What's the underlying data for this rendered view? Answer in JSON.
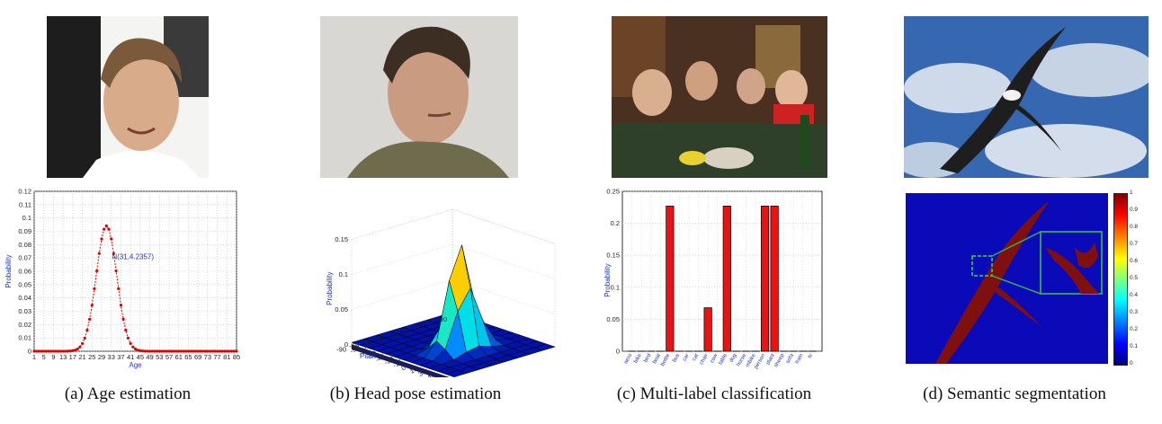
{
  "captions": {
    "a": "(a) Age estimation",
    "b": "(b) Head pose estimation",
    "c": "(c) Multi-label classification",
    "d": "(d) Semantic segmentation"
  },
  "age_annotation": "N(31,4.2357)",
  "segmentation_colorbar_ticks": [
    "1",
    "0.9",
    "0.8",
    "0.7",
    "0.6",
    "0.5",
    "0.4",
    "0.3",
    "0.2",
    "0.1",
    "0"
  ],
  "chart_data": [
    {
      "type": "line",
      "xlabel": "Age",
      "ylabel": "Probability",
      "ylim": [
        0,
        0.12
      ],
      "xlim": [
        1,
        85
      ],
      "xticks": [
        "1",
        "5",
        "9",
        "13",
        "17",
        "21",
        "25",
        "29",
        "33",
        "37",
        "41",
        "45",
        "49",
        "53",
        "57",
        "61",
        "65",
        "69",
        "73",
        "77",
        "81",
        "85"
      ],
      "yticks": [
        "0",
        "0.01",
        "0.02",
        "0.03",
        "0.04",
        "0.05",
        "0.06",
        "0.07",
        "0.08",
        "0.09",
        "0.1",
        "0.11",
        "0.12"
      ],
      "grid": true,
      "series": [
        {
          "mean": 31,
          "std": 4.2357
        }
      ]
    },
    {
      "type": "bar",
      "subtype": "3d-surface",
      "xlabel": "Yaw",
      "ylabel": "Pitch",
      "zlabel": "Probability",
      "zlim": [
        0,
        0.15
      ],
      "zticks": [
        "0",
        "0.05",
        "0.1",
        "0.15"
      ],
      "pitch_ticks": [
        "90",
        "60",
        "30",
        "15",
        "0",
        "-15",
        "-30",
        "-60",
        "-90"
      ],
      "yaw_ticks": [
        "-90",
        "-75",
        "-60",
        "-45",
        "-30",
        "-15",
        "0",
        "15",
        "30",
        "45",
        "60",
        "75",
        "90"
      ],
      "grid": true
    },
    {
      "type": "bar",
      "ylabel": "Probability",
      "ylim": [
        0,
        0.25
      ],
      "yticks": [
        "0",
        "0.05",
        "0.1",
        "0.15",
        "0.2",
        "0.25"
      ],
      "categories": [
        "aero",
        "bike",
        "bird",
        "boat",
        "bottle",
        "bus",
        "car",
        "cat",
        "chair",
        "cow",
        "table",
        "dog",
        "horse",
        "mbike",
        "person",
        "plant",
        "sheep",
        "sofa",
        "train",
        "tv"
      ],
      "values": [
        0,
        0,
        0,
        0,
        0.227,
        0,
        0,
        0,
        0.068,
        0,
        0.227,
        0,
        0,
        0,
        0.227,
        0.227,
        0,
        0,
        0,
        0
      ],
      "grid": true
    }
  ]
}
